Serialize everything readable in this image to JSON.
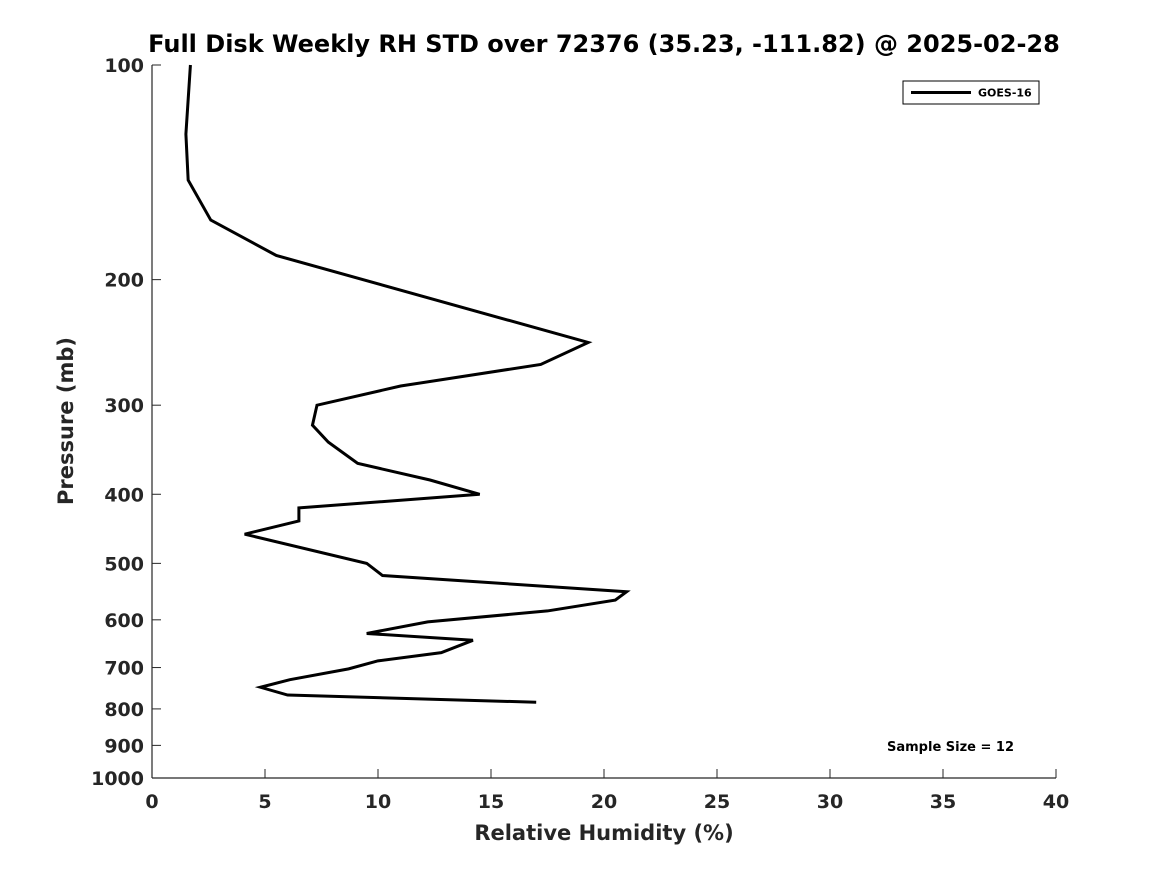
{
  "chart_data": {
    "type": "line",
    "title": "Full Disk Weekly RH STD over 72376 (35.23, -111.82) @ 2025-02-28",
    "xlabel": "Relative Humidity (%)",
    "ylabel": "Pressure (mb)",
    "xlim": [
      0,
      40
    ],
    "ylim": [
      100,
      1000
    ],
    "y_scale": "log",
    "y_reversed": true,
    "grid": false,
    "x_ticks": [
      0,
      5,
      10,
      15,
      20,
      25,
      30,
      35,
      40
    ],
    "y_ticks": [
      100,
      200,
      300,
      400,
      500,
      600,
      700,
      800,
      900,
      1000
    ],
    "legend_position": "top-right",
    "series": [
      {
        "name": "GOES-16",
        "color": "#000000",
        "points": [
          {
            "x": 1.7,
            "y": 100
          },
          {
            "x": 1.5,
            "y": 125
          },
          {
            "x": 1.6,
            "y": 145
          },
          {
            "x": 2.6,
            "y": 165
          },
          {
            "x": 5.5,
            "y": 185
          },
          {
            "x": 19.3,
            "y": 245
          },
          {
            "x": 17.2,
            "y": 263
          },
          {
            "x": 11.0,
            "y": 282
          },
          {
            "x": 7.3,
            "y": 300
          },
          {
            "x": 7.1,
            "y": 320
          },
          {
            "x": 7.8,
            "y": 338
          },
          {
            "x": 9.1,
            "y": 362
          },
          {
            "x": 12.3,
            "y": 382
          },
          {
            "x": 14.5,
            "y": 400
          },
          {
            "x": 6.5,
            "y": 418
          },
          {
            "x": 6.5,
            "y": 436
          },
          {
            "x": 4.1,
            "y": 455
          },
          {
            "x": 9.5,
            "y": 500
          },
          {
            "x": 10.2,
            "y": 520
          },
          {
            "x": 21.0,
            "y": 548
          },
          {
            "x": 20.5,
            "y": 563
          },
          {
            "x": 17.5,
            "y": 583
          },
          {
            "x": 12.2,
            "y": 604
          },
          {
            "x": 9.5,
            "y": 627
          },
          {
            "x": 14.2,
            "y": 641
          },
          {
            "x": 12.8,
            "y": 667
          },
          {
            "x": 10.0,
            "y": 685
          },
          {
            "x": 8.7,
            "y": 703
          },
          {
            "x": 6.1,
            "y": 728
          },
          {
            "x": 4.8,
            "y": 746
          },
          {
            "x": 6.0,
            "y": 765
          },
          {
            "x": 17.0,
            "y": 783
          }
        ]
      }
    ],
    "annotation": "Sample Size = 12"
  }
}
